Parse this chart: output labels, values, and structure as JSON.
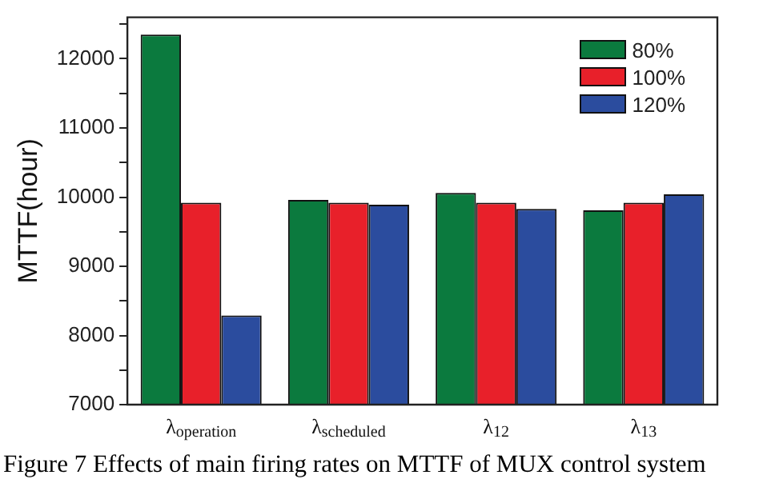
{
  "chart_data": {
    "type": "bar",
    "ylabel": "MTTF(hour)",
    "categories": [
      "λ$_{operation}$",
      "λ$_{scheduled}$",
      "λ$_{12}$",
      "λ$_{13}$"
    ],
    "series": [
      {
        "name": "80%",
        "color": "#0b7a3e",
        "values": [
          12350,
          9960,
          10060,
          9810
        ]
      },
      {
        "name": "100%",
        "color": "#e8202a",
        "values": [
          9920,
          9920,
          9920,
          9920
        ]
      },
      {
        "name": "120%",
        "color": "#2b4c9e",
        "values": [
          8290,
          9890,
          9830,
          10040
        ]
      }
    ],
    "ylim": [
      7000,
      12600
    ],
    "yticks": [
      7000,
      {
        "value": 7500,
        "label": null
      },
      8000,
      {
        "value": 8500,
        "label": null
      },
      9000,
      {
        "value": 9500,
        "label": null
      },
      10000,
      {
        "value": 10500,
        "label": null
      },
      11000,
      {
        "value": 11500,
        "label": null
      },
      12000,
      {
        "value": 12500,
        "label": null
      }
    ],
    "grid": false,
    "legend": "top right",
    "annotations": [
      "Figure 7 Effects of main firing rates on MTTF of MUX control system"
    ]
  }
}
